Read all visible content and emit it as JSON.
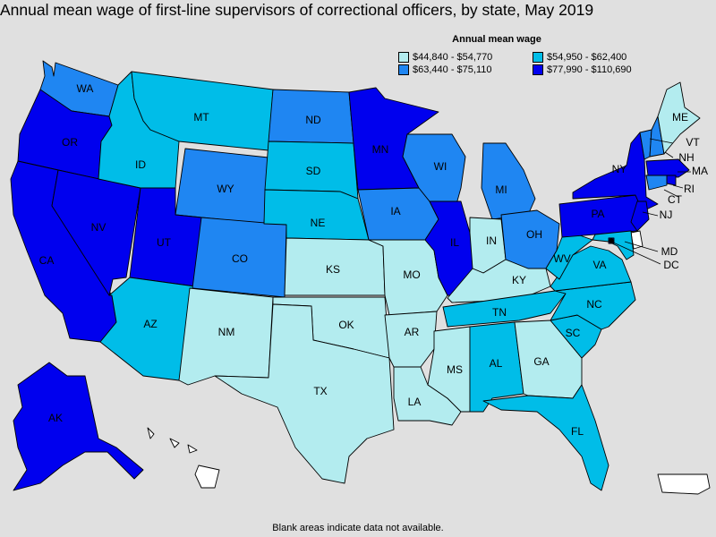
{
  "title": "Annual mean wage of first-line supervisors of correctional officers, by state, May 2019",
  "legend": {
    "title": "Annual mean wage",
    "items": [
      {
        "label": "$44,840 - $54,770",
        "color": "#b3ecef"
      },
      {
        "label": "$54,950 - $62,400",
        "color": "#00bde8"
      },
      {
        "label": "$63,440 - $75,110",
        "color": "#1f86f2"
      },
      {
        "label": "$77,990 - $110,690",
        "color": "#0000ee"
      }
    ]
  },
  "footnote": "Blank areas indicate data not available.",
  "colors": {
    "tier1": "#b3ecef",
    "tier2": "#00bde8",
    "tier3": "#1f86f2",
    "tier4": "#0000ee",
    "no_data": "#ffffff",
    "background": "#e0e0e0"
  },
  "states": [
    {
      "abbr": "WA",
      "tier": 3
    },
    {
      "abbr": "OR",
      "tier": 4
    },
    {
      "abbr": "CA",
      "tier": 4
    },
    {
      "abbr": "NV",
      "tier": 4
    },
    {
      "abbr": "ID",
      "tier": 2
    },
    {
      "abbr": "MT",
      "tier": 2
    },
    {
      "abbr": "WY",
      "tier": 3
    },
    {
      "abbr": "UT",
      "tier": 4
    },
    {
      "abbr": "AZ",
      "tier": 2
    },
    {
      "abbr": "CO",
      "tier": 3
    },
    {
      "abbr": "NM",
      "tier": 1
    },
    {
      "abbr": "ND",
      "tier": 3
    },
    {
      "abbr": "SD",
      "tier": 2
    },
    {
      "abbr": "NE",
      "tier": 2
    },
    {
      "abbr": "KS",
      "tier": 1
    },
    {
      "abbr": "OK",
      "tier": 1
    },
    {
      "abbr": "TX",
      "tier": 1
    },
    {
      "abbr": "MN",
      "tier": 4
    },
    {
      "abbr": "IA",
      "tier": 3
    },
    {
      "abbr": "MO",
      "tier": 1
    },
    {
      "abbr": "AR",
      "tier": 1
    },
    {
      "abbr": "LA",
      "tier": 1
    },
    {
      "abbr": "WI",
      "tier": 3
    },
    {
      "abbr": "IL",
      "tier": 4
    },
    {
      "abbr": "MI",
      "tier": 3
    },
    {
      "abbr": "IN",
      "tier": 1
    },
    {
      "abbr": "OH",
      "tier": 3
    },
    {
      "abbr": "KY",
      "tier": 1
    },
    {
      "abbr": "TN",
      "tier": 2
    },
    {
      "abbr": "MS",
      "tier": 1
    },
    {
      "abbr": "AL",
      "tier": 2
    },
    {
      "abbr": "GA",
      "tier": 1
    },
    {
      "abbr": "FL",
      "tier": 2
    },
    {
      "abbr": "SC",
      "tier": 2
    },
    {
      "abbr": "NC",
      "tier": 2
    },
    {
      "abbr": "VA",
      "tier": 2
    },
    {
      "abbr": "WV",
      "tier": 2
    },
    {
      "abbr": "PA",
      "tier": 4
    },
    {
      "abbr": "NY",
      "tier": 4
    },
    {
      "abbr": "VT",
      "tier": 3
    },
    {
      "abbr": "NH",
      "tier": 3
    },
    {
      "abbr": "ME",
      "tier": 1
    },
    {
      "abbr": "MA",
      "tier": 4
    },
    {
      "abbr": "RI",
      "tier": 4
    },
    {
      "abbr": "CT",
      "tier": 3
    },
    {
      "abbr": "NJ",
      "tier": 4
    },
    {
      "abbr": "DE",
      "tier": 0
    },
    {
      "abbr": "MD",
      "tier": 2
    },
    {
      "abbr": "DC",
      "tier": 4
    },
    {
      "abbr": "AK",
      "tier": 4
    },
    {
      "abbr": "HI",
      "tier": 0
    },
    {
      "abbr": "PR",
      "tier": 0
    }
  ]
}
